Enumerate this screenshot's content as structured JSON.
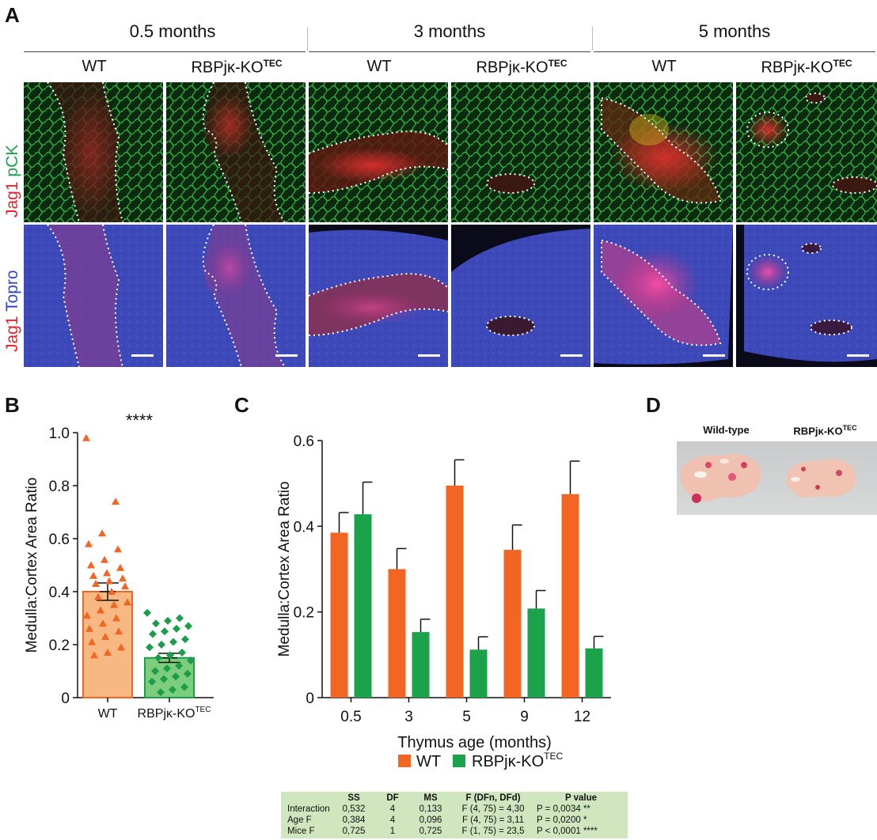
{
  "panel_letters": [
    "A",
    "B",
    "C",
    "D"
  ],
  "panelA": {
    "ages": [
      "0.5 months",
      "3 months",
      "5 months"
    ],
    "genotypes": {
      "wt": "WT",
      "ko_base": "RBPjκ-KO",
      "ko_sup": "TEC"
    },
    "row_labels": [
      {
        "first": "Jag1",
        "second": "pCK",
        "first_color": "#e8232b",
        "second_color": "#1aa34a"
      },
      {
        "first": "Jag1",
        "second": "Topro",
        "first_color": "#e8232b",
        "second_color": "#3344cc"
      }
    ]
  },
  "chart_data": [
    {
      "id": "B",
      "type": "bar",
      "categories": [
        "WT",
        "RBPjκ-KOᵀᴱᶜ"
      ],
      "category_labels": [
        {
          "base": "WT",
          "sup": ""
        },
        {
          "base": "RBPjκ-KO",
          "sup": "TEC"
        }
      ],
      "values": [
        0.4,
        0.15
      ],
      "errors": [
        0.033,
        0.017
      ],
      "colors": [
        "#f8b883",
        "#7ccd7c"
      ],
      "edge_colors": [
        "#f26522",
        "#1a9e48"
      ],
      "points": [
        [
          0.98,
          0.74,
          0.62,
          0.58,
          0.56,
          0.52,
          0.5,
          0.49,
          0.47,
          0.46,
          0.45,
          0.44,
          0.43,
          0.42,
          0.4,
          0.38,
          0.36,
          0.35,
          0.33,
          0.31,
          0.3,
          0.28,
          0.26,
          0.25,
          0.23,
          0.21,
          0.19,
          0.17,
          0.16
        ],
        [
          0.32,
          0.3,
          0.29,
          0.28,
          0.27,
          0.26,
          0.25,
          0.24,
          0.22,
          0.21,
          0.2,
          0.19,
          0.17,
          0.16,
          0.15,
          0.14,
          0.12,
          0.11,
          0.1,
          0.09,
          0.08,
          0.07,
          0.06,
          0.04,
          0.03,
          0.02
        ]
      ],
      "ylabel": "Medulla:Cortex Area Ratio",
      "ylim": [
        0,
        1.0
      ],
      "yticks": [
        "0",
        "0.2",
        "0.4",
        "0.6",
        "0.8",
        "1.0"
      ],
      "significance": "****"
    },
    {
      "id": "C",
      "type": "bar",
      "categories": [
        "0.5",
        "3",
        "5",
        "9",
        "12"
      ],
      "series": [
        {
          "name": "WT",
          "values": [
            0.385,
            0.3,
            0.495,
            0.345,
            0.475
          ],
          "errors": [
            0.047,
            0.048,
            0.06,
            0.058,
            0.077
          ],
          "color": "#f26522"
        },
        {
          "name": "RBPjκ-KOᵀᴱᶜ",
          "values": [
            0.428,
            0.153,
            0.112,
            0.208,
            0.115
          ],
          "errors": [
            0.075,
            0.03,
            0.03,
            0.042,
            0.028
          ],
          "color": "#1aa34a"
        }
      ],
      "legend": [
        {
          "base": "WT",
          "sup": ""
        },
        {
          "base": "RBPjκ-KO",
          "sup": "TEC"
        }
      ],
      "xlabel": "Thymus age (months)",
      "ylabel": "Medulla:Cortex Area Ratio",
      "ylim": [
        0,
        0.6
      ],
      "yticks": [
        "0",
        "0.2",
        "0.4",
        "0.6"
      ],
      "legend_position": "bottom"
    }
  ],
  "anova_table": {
    "headers": [
      "",
      "SS",
      "DF",
      "MS",
      "F (DFn, DFd)",
      "P value"
    ],
    "rows": [
      [
        "Interaction",
        "0,532",
        "4",
        "0,133",
        "F (4, 75) = 4,30",
        "P = 0,0034 **"
      ],
      [
        "Age F",
        "0,384",
        "4",
        "0,096",
        "F (4, 75) = 3,11",
        "P = 0,0200 *"
      ],
      [
        "Mice F",
        "0,725",
        "1",
        "0,725",
        "F (1, 75) = 23,5",
        "P < 0,0001 ****"
      ]
    ]
  },
  "panelD": {
    "label_wt": "Wild-type",
    "label_ko_base": "RBPjκ-KO",
    "label_ko_sup": "TEC"
  }
}
